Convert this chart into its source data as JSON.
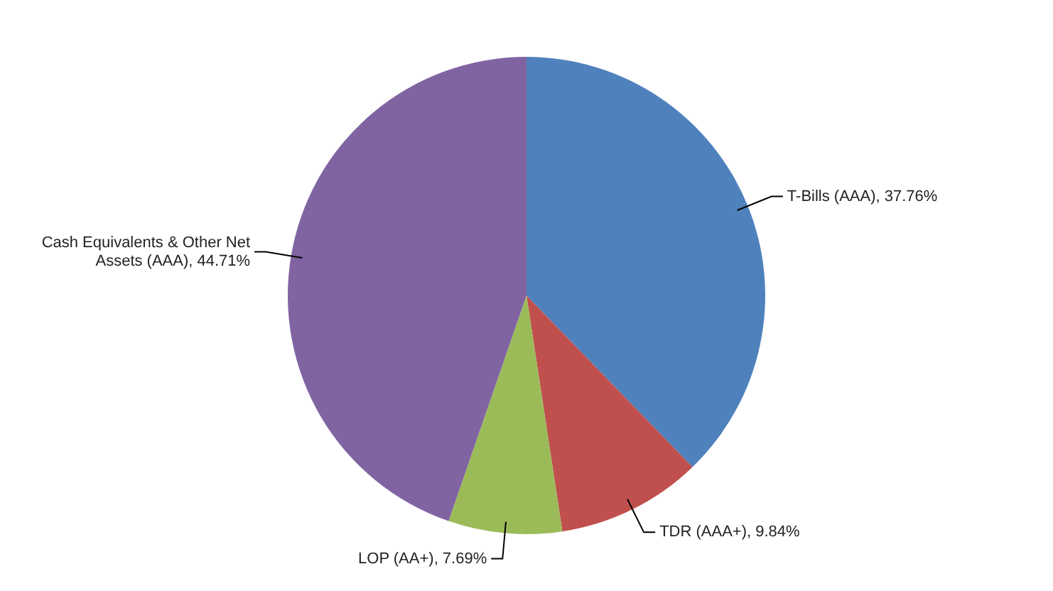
{
  "chart_data": {
    "type": "pie",
    "categories": [
      "T-Bills (AAA)",
      "TDR (AAA+)",
      "LOP (AA+)",
      "Cash Equivalents & Other Net Assets (AAA)"
    ],
    "values": [
      37.76,
      9.84,
      7.69,
      44.71
    ],
    "value_labels": [
      "37.76%",
      "9.84%",
      "7.69%",
      "44.71%"
    ],
    "colors": [
      "#4f81bd",
      "#c0504d",
      "#9bbb59",
      "#8064a2"
    ],
    "legend": false
  }
}
